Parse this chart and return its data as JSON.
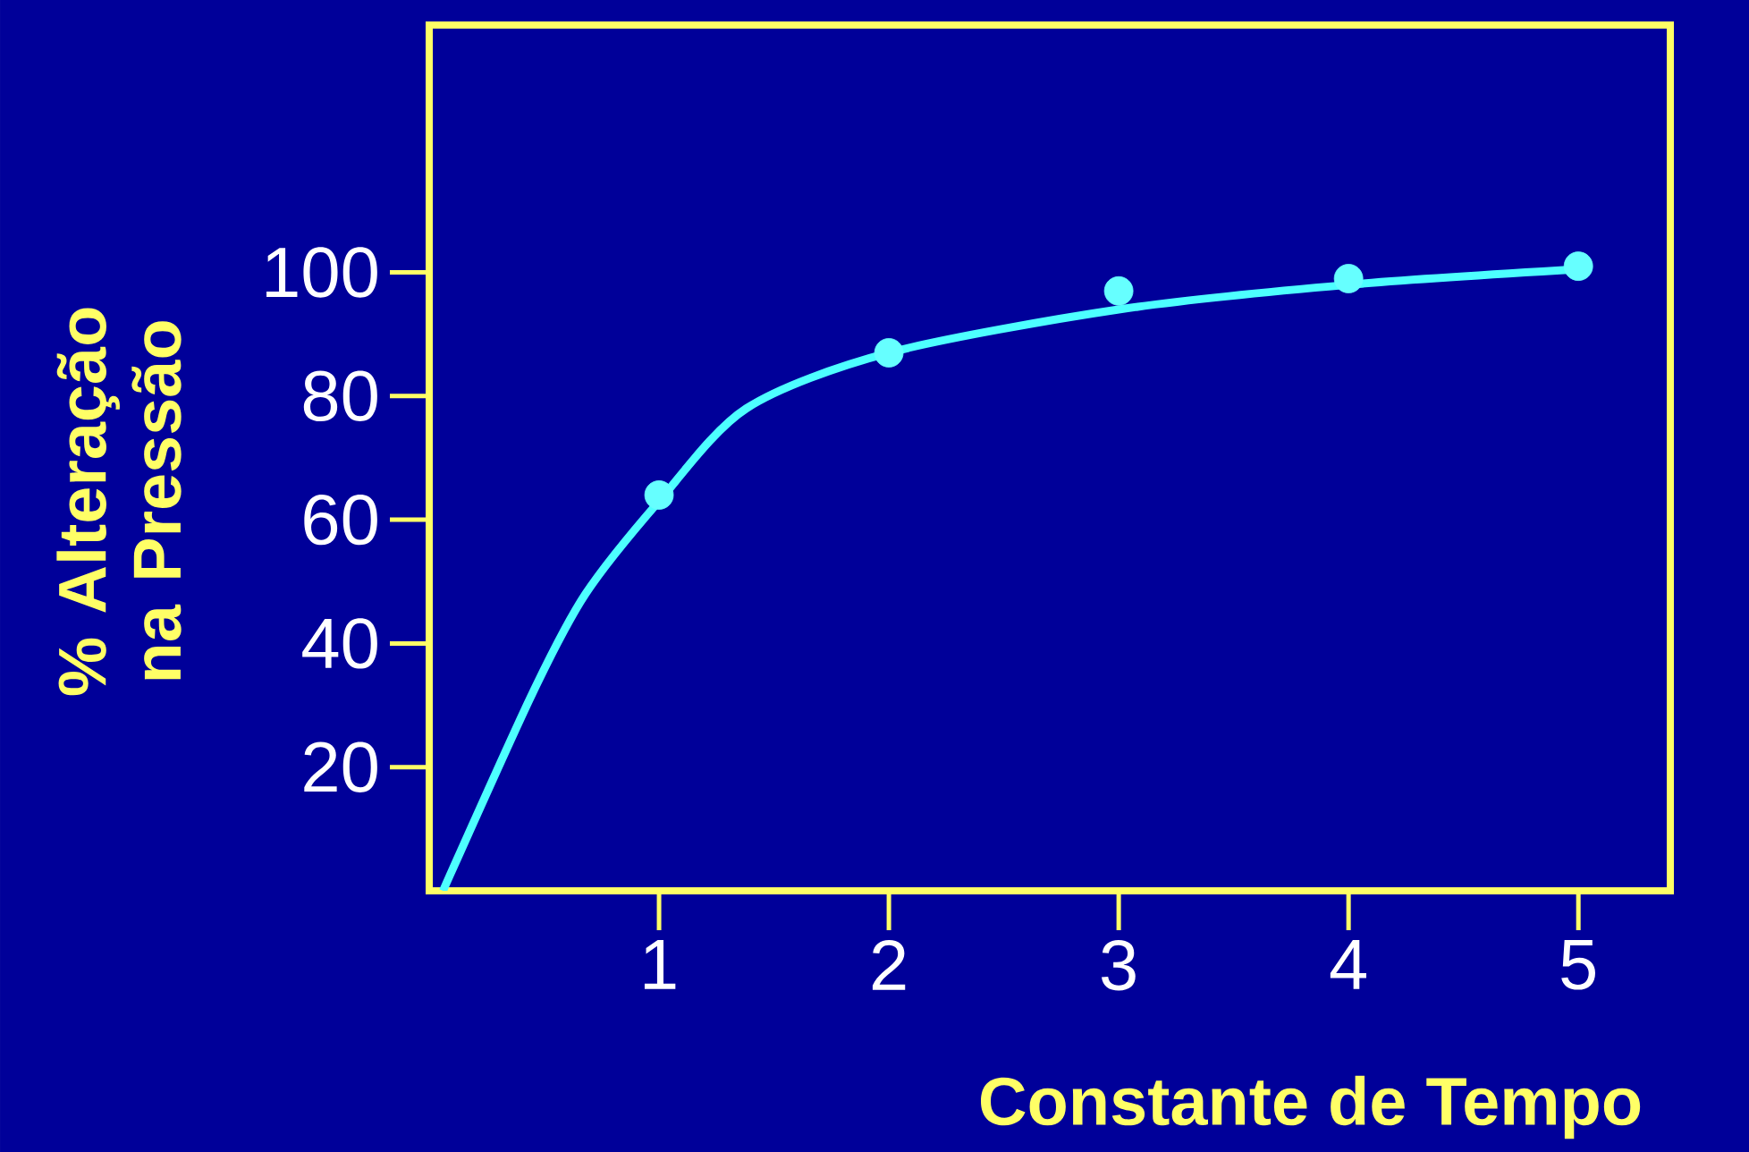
{
  "chart_data": {
    "type": "scatter",
    "xlabel": "Constante de Tempo",
    "ylabel": "% Alteração na Pressão",
    "xlim": [
      0,
      5.4
    ],
    "ylim": [
      0,
      140
    ],
    "xticks": [
      1,
      2,
      3,
      4,
      5
    ],
    "yticks": [
      20,
      40,
      60,
      80,
      100
    ],
    "grid": false,
    "series": [
      {
        "type": "line",
        "color": "#4dffff",
        "marker": "none",
        "x": [
          0.06,
          0.45,
          0.68,
          1,
          1.38,
          2,
          3,
          4,
          5
        ],
        "values": [
          0,
          32,
          48,
          63,
          78,
          87,
          94,
          98,
          100.5
        ]
      },
      {
        "color": "#66ffff",
        "marker": "circle",
        "x": [
          1,
          2,
          3,
          4,
          5
        ],
        "values": [
          64,
          87,
          97,
          99,
          101
        ]
      }
    ]
  }
}
